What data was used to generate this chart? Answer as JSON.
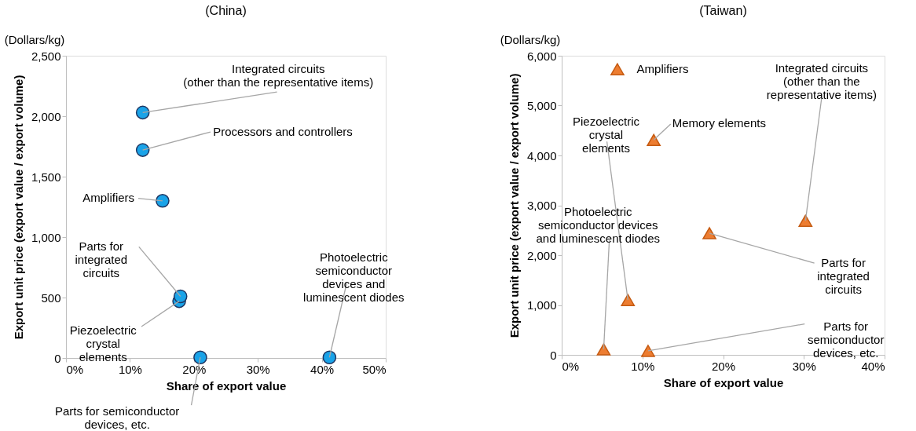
{
  "chart_data": [
    {
      "type": "scatter",
      "title": "(China)",
      "xlabel": "Share of export value",
      "ylabel": "Export unit price (export value / export volume)",
      "marker": "circle",
      "grid": false,
      "x": [
        12.0,
        12.0,
        15.1,
        17.9,
        17.7,
        21.0,
        41.2
      ],
      "series": [
        {
          "color": "#1aa3e8",
          "values": [
            2030,
            1720,
            1300,
            510,
            470,
            5,
            5
          ]
        }
      ],
      "xlim": [
        0,
        50
      ],
      "xticks": [
        {
          "value": 0,
          "label": "0%"
        },
        {
          "value": 10,
          "label": "10%"
        },
        {
          "value": 20,
          "label": "20%"
        },
        {
          "value": 30,
          "label": "30%"
        },
        {
          "value": 40,
          "label": "40%"
        },
        {
          "value": 50,
          "label": "50%"
        }
      ],
      "ylim": [
        0,
        2500
      ],
      "yticks": [
        {
          "value": 0,
          "label": "0"
        },
        {
          "value": 500,
          "label": "500"
        },
        {
          "value": 1000,
          "label": "1,000"
        },
        {
          "value": 1500,
          "label": "1,500"
        },
        {
          "value": 2000,
          "label": "2,000"
        },
        {
          "value": 2500,
          "label": "2,500"
        }
      ],
      "annotations": [
        "(Dollars/kg)",
        {
          "text": "Integrated circuits\n(other than the representative items)",
          "x": 12.0,
          "y": 2030
        },
        {
          "text": "Processors and controllers",
          "x": 12.0,
          "y": 1720
        },
        {
          "text": "Amplifiers",
          "x": 15.1,
          "y": 1300
        },
        {
          "text": "Parts for\nintegrated\ncircuits",
          "x": 17.9,
          "y": 510
        },
        {
          "text": "Piezoelectric\ncrystal\nelements",
          "x": 17.7,
          "y": 470
        },
        {
          "text": "Parts for semiconductor\ndevices, etc.",
          "x": 21.0,
          "y": 5
        },
        {
          "text": "Photoelectric\nsemiconductor\ndevices and\nluminescent diodes",
          "x": 41.2,
          "y": 5
        }
      ]
    },
    {
      "type": "scatter",
      "title": "(Taiwan)",
      "xlabel": "Share of export value",
      "ylabel": "Export unit price (export value / export volume)",
      "marker": "triangle",
      "grid": false,
      "x": [
        30.2,
        6.9,
        11.4,
        18.3,
        8.2,
        5.2,
        10.7
      ],
      "series": [
        {
          "color": "#ed7d31",
          "values": [
            2690,
            5730,
            4310,
            2440,
            1100,
            110,
            80
          ]
        }
      ],
      "xlim": [
        0,
        40
      ],
      "xticks": [
        {
          "value": 0,
          "label": "0%"
        },
        {
          "value": 10,
          "label": "10%"
        },
        {
          "value": 20,
          "label": "20%"
        },
        {
          "value": 30,
          "label": "30%"
        },
        {
          "value": 40,
          "label": "40%"
        }
      ],
      "ylim": [
        0,
        6000
      ],
      "yticks": [
        {
          "value": 0,
          "label": "0"
        },
        {
          "value": 1000,
          "label": "1,000"
        },
        {
          "value": 2000,
          "label": "2,000"
        },
        {
          "value": 3000,
          "label": "3,000"
        },
        {
          "value": 4000,
          "label": "4,000"
        },
        {
          "value": 5000,
          "label": "5,000"
        },
        {
          "value": 6000,
          "label": "6,000"
        }
      ],
      "annotations": [
        "(Dollars/kg)",
        {
          "text": "Integrated circuits\n(other than the\nrepresentative items)",
          "x": 30.2,
          "y": 2690
        },
        {
          "text": "Amplifiers",
          "x": 6.9,
          "y": 5730
        },
        {
          "text": "Memory elements",
          "x": 11.4,
          "y": 4310
        },
        {
          "text": "Parts for\nintegrated\ncircuits",
          "x": 18.3,
          "y": 2440
        },
        {
          "text": "Piezoelectric\ncrystal\nelements",
          "x": 8.2,
          "y": 1100
        },
        {
          "text": "Photoelectric\nsemiconductor devices\nand luminescent diodes",
          "x": 5.2,
          "y": 110
        },
        {
          "text": "Parts for\nsemiconductor\ndevices, etc.",
          "x": 10.7,
          "y": 80
        }
      ]
    }
  ]
}
